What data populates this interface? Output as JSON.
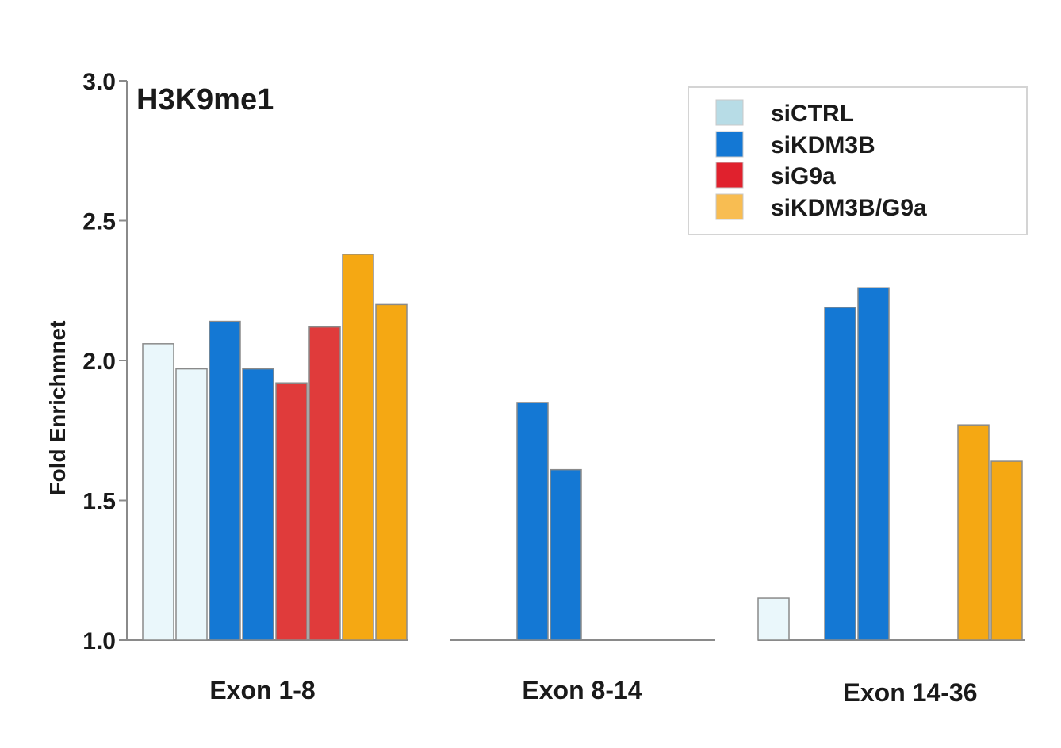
{
  "chart_data": {
    "type": "bar",
    "title": "H3K9me1",
    "xlabel": "",
    "ylabel": "Fold Enrichmnet",
    "ylim": [
      1.0,
      3.0
    ],
    "yticks": [
      "1.0",
      "1.5",
      "2.0",
      "2.5",
      "3.0"
    ],
    "grid": false,
    "legend_position": "top-right",
    "categories": [
      "Exon 1-8",
      "Exon 8-14",
      "Exon 14-36"
    ],
    "series": [
      {
        "name": "siCTRL",
        "color": "#eaf7fb",
        "legend_color": "#b7dce6",
        "values": [
          [
            2.06,
            1.97
          ],
          [
            1.0,
            1.0
          ],
          [
            1.15,
            1.0
          ]
        ]
      },
      {
        "name": "siKDM3B",
        "color": "#1478d4",
        "legend_color": "#1478d4",
        "values": [
          [
            2.14,
            1.97
          ],
          [
            1.85,
            1.61
          ],
          [
            2.19,
            2.26
          ]
        ]
      },
      {
        "name": "siG9a",
        "color": "#e03b3b",
        "legend_color": "#e0212d",
        "values": [
          [
            1.92,
            2.12
          ],
          [
            1.0,
            1.0
          ],
          [
            1.0,
            1.0
          ]
        ]
      },
      {
        "name": "siKDM3B/G9a",
        "color": "#f5a813",
        "legend_color": "#f8bd52",
        "values": [
          [
            2.38,
            2.2
          ],
          [
            1.0,
            1.0
          ],
          [
            1.77,
            1.64
          ]
        ]
      }
    ]
  }
}
